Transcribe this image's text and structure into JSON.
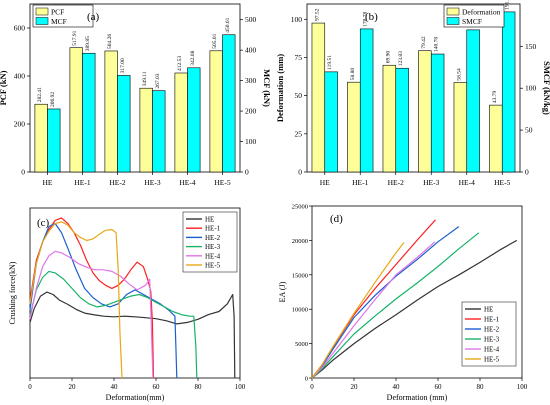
{
  "chart_data": [
    {
      "id": "a",
      "type": "bar",
      "panel_label": "(a)",
      "categories": [
        "HE",
        "HE-1",
        "HE-2",
        "HE-3",
        "HE-4",
        "HE-5"
      ],
      "series": [
        {
          "name": "PCF",
          "axis": "left",
          "color": "#ffff99",
          "values": [
            282.41,
            517.91,
            504.26,
            349.11,
            412.53,
            505.01
          ],
          "labels": [
            "282.41",
            "517.91",
            "504.26",
            "349.11",
            "412.53",
            "505.01"
          ]
        },
        {
          "name": "MCF",
          "axis": "right",
          "color": "#00ffff",
          "values": [
            206.92,
            389.85,
            317.0,
            267.03,
            342.08,
            450.61
          ],
          "labels": [
            "206.92",
            "389.85",
            "317.00",
            "267.03",
            "342.08",
            "450.61"
          ]
        }
      ],
      "ylabel": "PCF (kN)",
      "y2label": "MCF (kN)",
      "ylim": [
        0,
        700
      ],
      "y2lim": [
        0,
        551.5
      ],
      "yticks": [
        "0",
        "200",
        "400",
        "600"
      ],
      "y2ticks": [
        "0",
        "100",
        "200",
        "300",
        "400",
        "500"
      ],
      "legend": "top-left"
    },
    {
      "id": "b",
      "type": "bar",
      "panel_label": "(b)",
      "categories": [
        "HE",
        "HE-1",
        "HE-2",
        "HE-3",
        "HE-4",
        "HE-5"
      ],
      "series": [
        {
          "name": "Deformation",
          "axis": "left",
          "color": "#ffff99",
          "values": [
            97.52,
            58.8,
            69.9,
            79.42,
            58.54,
            43.79
          ],
          "labels": [
            "97.52",
            "58.80",
            "69.90",
            "79.42",
            "58.54",
            "43.79"
          ]
        },
        {
          "name": "SMCF",
          "axis": "right",
          "color": "#00ffff",
          "values": [
            119.51,
            170.78,
            123.83,
            140.78,
            169.62,
            191.08
          ],
          "labels": [
            "119.51",
            "170.78",
            "123.83",
            "140.78",
            "169.62",
            "191.08"
          ]
        }
      ],
      "ylabel": "Deformation (mm)",
      "y2label": "SMCF (kN/kg)",
      "ylim": [
        0,
        110
      ],
      "y2lim": [
        0,
        200.5
      ],
      "yticks": [
        "0",
        "25",
        "50",
        "75",
        "100"
      ],
      "y2ticks": [
        "0",
        "50",
        "100",
        "150"
      ],
      "legend": "top-right"
    },
    {
      "id": "c",
      "type": "line",
      "panel_label": "(c)",
      "xlabel": "Deformation(mm)",
      "ylabel": "Crushing force(kN)",
      "xlim": [
        0,
        100
      ],
      "ylim": [
        0,
        550
      ],
      "xticks": [
        "0",
        "20",
        "40",
        "60",
        "80",
        "100"
      ],
      "legend": "top-right",
      "series": [
        {
          "name": "HE",
          "color": "#333333",
          "points": [
            [
              0,
              180
            ],
            [
              2,
              225
            ],
            [
              5,
              265
            ],
            [
              8,
              278
            ],
            [
              11,
              270
            ],
            [
              14,
              252
            ],
            [
              18,
              238
            ],
            [
              22,
              222
            ],
            [
              26,
              210
            ],
            [
              30,
              205
            ],
            [
              35,
              200
            ],
            [
              40,
              198
            ],
            [
              45,
              200
            ],
            [
              50,
              198
            ],
            [
              55,
              195
            ],
            [
              60,
              192
            ],
            [
              65,
              185
            ],
            [
              70,
              175
            ],
            [
              75,
              180
            ],
            [
              80,
              190
            ],
            [
              85,
              205
            ],
            [
              90,
              215
            ],
            [
              94,
              240
            ],
            [
              96.5,
              270
            ],
            [
              97.2,
              200
            ],
            [
              97.52,
              0
            ]
          ]
        },
        {
          "name": "HE-1",
          "color": "#ff2020",
          "points": [
            [
              0,
              250
            ],
            [
              3,
              380
            ],
            [
              6,
              440
            ],
            [
              9,
              480
            ],
            [
              12,
              510
            ],
            [
              15,
              518
            ],
            [
              18,
              500
            ],
            [
              21,
              470
            ],
            [
              24,
              430
            ],
            [
              27,
              380
            ],
            [
              30,
              340
            ],
            [
              33,
              315
            ],
            [
              36,
              300
            ],
            [
              39,
              290
            ],
            [
              42,
              300
            ],
            [
              45,
              320
            ],
            [
              48,
              350
            ],
            [
              51,
              375
            ],
            [
              54,
              360
            ],
            [
              56,
              320
            ],
            [
              57.5,
              280
            ],
            [
              58.3,
              180
            ],
            [
              58.8,
              0
            ]
          ]
        },
        {
          "name": "HE-2",
          "color": "#1a5fcf",
          "points": [
            [
              0,
              220
            ],
            [
              3,
              370
            ],
            [
              6,
              440
            ],
            [
              9,
              490
            ],
            [
              12,
              500
            ],
            [
              15,
              470
            ],
            [
              18,
              420
            ],
            [
              22,
              350
            ],
            [
              26,
              290
            ],
            [
              30,
              260
            ],
            [
              34,
              240
            ],
            [
              38,
              230
            ],
            [
              42,
              240
            ],
            [
              46,
              270
            ],
            [
              50,
              285
            ],
            [
              54,
              270
            ],
            [
              58,
              255
            ],
            [
              62,
              240
            ],
            [
              66,
              220
            ],
            [
              69,
              200
            ],
            [
              69.5,
              100
            ],
            [
              69.9,
              0
            ]
          ]
        },
        {
          "name": "HE-3",
          "color": "#19b26b",
          "points": [
            [
              0,
              200
            ],
            [
              3,
              285
            ],
            [
              6,
              325
            ],
            [
              9,
              345
            ],
            [
              12,
              340
            ],
            [
              16,
              320
            ],
            [
              20,
              290
            ],
            [
              24,
              260
            ],
            [
              28,
              240
            ],
            [
              32,
              230
            ],
            [
              36,
              235
            ],
            [
              40,
              245
            ],
            [
              44,
              255
            ],
            [
              48,
              265
            ],
            [
              52,
              270
            ],
            [
              56,
              260
            ],
            [
              60,
              245
            ],
            [
              64,
              230
            ],
            [
              68,
              215
            ],
            [
              72,
              205
            ],
            [
              76,
              200
            ],
            [
              78,
              200
            ],
            [
              79,
              100
            ],
            [
              79.42,
              0
            ]
          ]
        },
        {
          "name": "HE-4",
          "color": "#df75e8",
          "points": [
            [
              0,
              190
            ],
            [
              3,
              290
            ],
            [
              6,
              360
            ],
            [
              9,
              395
            ],
            [
              12,
              410
            ],
            [
              15,
              405
            ],
            [
              19,
              390
            ],
            [
              23,
              370
            ],
            [
              27,
              358
            ],
            [
              31,
              350
            ],
            [
              35,
              350
            ],
            [
              39,
              345
            ],
            [
              43,
              330
            ],
            [
              47,
              305
            ],
            [
              51,
              285
            ],
            [
              55,
              300
            ],
            [
              57,
              320
            ],
            [
              57.6,
              200
            ],
            [
              58.54,
              0
            ]
          ]
        },
        {
          "name": "HE-5",
          "color": "#e6a817",
          "points": [
            [
              0,
              240
            ],
            [
              3,
              370
            ],
            [
              6,
              440
            ],
            [
              9,
              475
            ],
            [
              12,
              500
            ],
            [
              15,
              505
            ],
            [
              18,
              495
            ],
            [
              21,
              470
            ],
            [
              24,
              455
            ],
            [
              27,
              445
            ],
            [
              30,
              450
            ],
            [
              33,
              465
            ],
            [
              36,
              478
            ],
            [
              39,
              480
            ],
            [
              41,
              470
            ],
            [
              42,
              350
            ],
            [
              42.8,
              150
            ],
            [
              43.79,
              0
            ]
          ]
        }
      ]
    },
    {
      "id": "d",
      "type": "line",
      "panel_label": "(d)",
      "xlabel": "Deformation (mm)",
      "ylabel": "EA (J)",
      "xlim": [
        0,
        100
      ],
      "ylim": [
        0,
        25000
      ],
      "xticks": [
        "0",
        "20",
        "40",
        "60",
        "80",
        "100"
      ],
      "yticks": [
        "0",
        "5000",
        "10000",
        "15000",
        "20000",
        "25000"
      ],
      "legend": "bottom-right",
      "series": [
        {
          "name": "HE",
          "color": "#333333",
          "points": [
            [
              0,
              0
            ],
            [
              5,
              1200
            ],
            [
              10,
              2600
            ],
            [
              20,
              5000
            ],
            [
              30,
              7200
            ],
            [
              40,
              9200
            ],
            [
              50,
              11300
            ],
            [
              60,
              13300
            ],
            [
              70,
              15000
            ],
            [
              80,
              16800
            ],
            [
              90,
              18700
            ],
            [
              97.52,
              20000
            ]
          ]
        },
        {
          "name": "HE-1",
          "color": "#ff2020",
          "points": [
            [
              0,
              0
            ],
            [
              5,
              2000
            ],
            [
              10,
              4500
            ],
            [
              20,
              9200
            ],
            [
              30,
              13000
            ],
            [
              40,
              16500
            ],
            [
              50,
              20000
            ],
            [
              58.8,
              23000
            ]
          ]
        },
        {
          "name": "HE-2",
          "color": "#1a5fcf",
          "points": [
            [
              0,
              0
            ],
            [
              5,
              1800
            ],
            [
              10,
              4200
            ],
            [
              20,
              8800
            ],
            [
              30,
              12000
            ],
            [
              40,
              14800
            ],
            [
              50,
              17200
            ],
            [
              60,
              19800
            ],
            [
              69.9,
              22000
            ]
          ]
        },
        {
          "name": "HE-3",
          "color": "#19b26b",
          "points": [
            [
              0,
              0
            ],
            [
              5,
              1400
            ],
            [
              10,
              3100
            ],
            [
              20,
              6400
            ],
            [
              30,
              9000
            ],
            [
              40,
              11500
            ],
            [
              50,
              13800
            ],
            [
              60,
              16200
            ],
            [
              70,
              18800
            ],
            [
              79.42,
              21100
            ]
          ]
        },
        {
          "name": "HE-4",
          "color": "#df75e8",
          "points": [
            [
              0,
              0
            ],
            [
              5,
              1600
            ],
            [
              10,
              3600
            ],
            [
              20,
              7600
            ],
            [
              30,
              11400
            ],
            [
              40,
              15000
            ],
            [
              50,
              17500
            ],
            [
              58.54,
              19800
            ]
          ]
        },
        {
          "name": "HE-5",
          "color": "#e6a817",
          "points": [
            [
              0,
              0
            ],
            [
              5,
              2000
            ],
            [
              10,
              4600
            ],
            [
              20,
              9400
            ],
            [
              30,
              13900
            ],
            [
              40,
              18200
            ],
            [
              43.79,
              19700
            ]
          ]
        }
      ]
    }
  ]
}
